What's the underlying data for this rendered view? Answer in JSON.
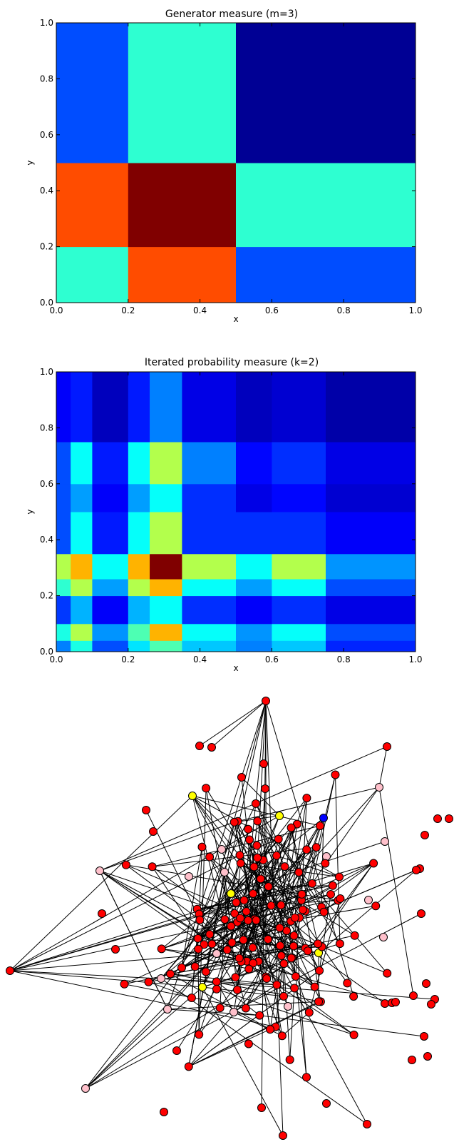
{
  "chart_data": [
    {
      "type": "heatmap",
      "title": "Generator measure (m=3)",
      "xlabel": "x",
      "ylabel": "y",
      "xlim": [
        0,
        1
      ],
      "ylim": [
        0,
        1
      ],
      "xticks": [
        "0.0",
        "0.2",
        "0.4",
        "0.6",
        "0.8",
        "1.0"
      ],
      "yticks": [
        "0.0",
        "0.2",
        "0.4",
        "0.6",
        "0.8",
        "1.0"
      ],
      "colormap": "jet",
      "x_breaks": [
        0,
        0.2,
        0.5,
        1.0
      ],
      "y_breaks": [
        0,
        0.2,
        0.5,
        1.0
      ],
      "values_bottom_to_top": [
        [
          0.42,
          0.8,
          0.2
        ],
        [
          0.8,
          1.0,
          0.42
        ],
        [
          0.2,
          0.42,
          0.02
        ]
      ]
    },
    {
      "type": "heatmap",
      "title": "Iterated probability measure (k=2)",
      "xlabel": "x",
      "ylabel": "y",
      "xlim": [
        0,
        1
      ],
      "ylim": [
        0,
        1
      ],
      "xticks": [
        "0.0",
        "0.2",
        "0.4",
        "0.6",
        "0.8",
        "1.0"
      ],
      "yticks": [
        "0.0",
        "0.2",
        "0.4",
        "0.6",
        "0.8",
        "1.0"
      ],
      "colormap": "jet",
      "x_breaks": [
        0,
        0.04,
        0.1,
        0.2,
        0.26,
        0.35,
        0.5,
        0.6,
        0.75,
        1.0
      ],
      "y_breaks": [
        0,
        0.04,
        0.1,
        0.2,
        0.26,
        0.35,
        0.5,
        0.6,
        0.75,
        1.0
      ],
      "values_bottom_to_top": [
        [
          0.25,
          0.4,
          0.2,
          0.35,
          0.45,
          0.32,
          0.25,
          0.32,
          0.16
        ],
        [
          0.4,
          0.55,
          0.27,
          0.45,
          0.7,
          0.38,
          0.27,
          0.38,
          0.2
        ],
        [
          0.18,
          0.3,
          0.12,
          0.3,
          0.38,
          0.17,
          0.12,
          0.17,
          0.1
        ],
        [
          0.42,
          0.55,
          0.28,
          0.55,
          0.7,
          0.38,
          0.28,
          0.38,
          0.2
        ],
        [
          0.55,
          0.7,
          0.38,
          0.7,
          1.0,
          0.55,
          0.38,
          0.55,
          0.27
        ],
        [
          0.2,
          0.38,
          0.15,
          0.38,
          0.55,
          0.17,
          0.17,
          0.17,
          0.12
        ],
        [
          0.2,
          0.28,
          0.12,
          0.28,
          0.38,
          0.17,
          0.1,
          0.13,
          0.08
        ],
        [
          0.2,
          0.38,
          0.15,
          0.38,
          0.55,
          0.25,
          0.13,
          0.17,
          0.1
        ],
        [
          0.12,
          0.15,
          0.06,
          0.15,
          0.25,
          0.1,
          0.06,
          0.08,
          0.04
        ]
      ]
    },
    {
      "type": "network",
      "node_fill": {
        "red": "#ff0000",
        "pink": "#ffc0cb",
        "yellow": "#ffff00",
        "blue": "#0000ff"
      },
      "node_count": 190,
      "pink_nodes": 19,
      "yellow_nodes": 5,
      "blue_nodes": 1,
      "edge_color": "#000000"
    }
  ]
}
